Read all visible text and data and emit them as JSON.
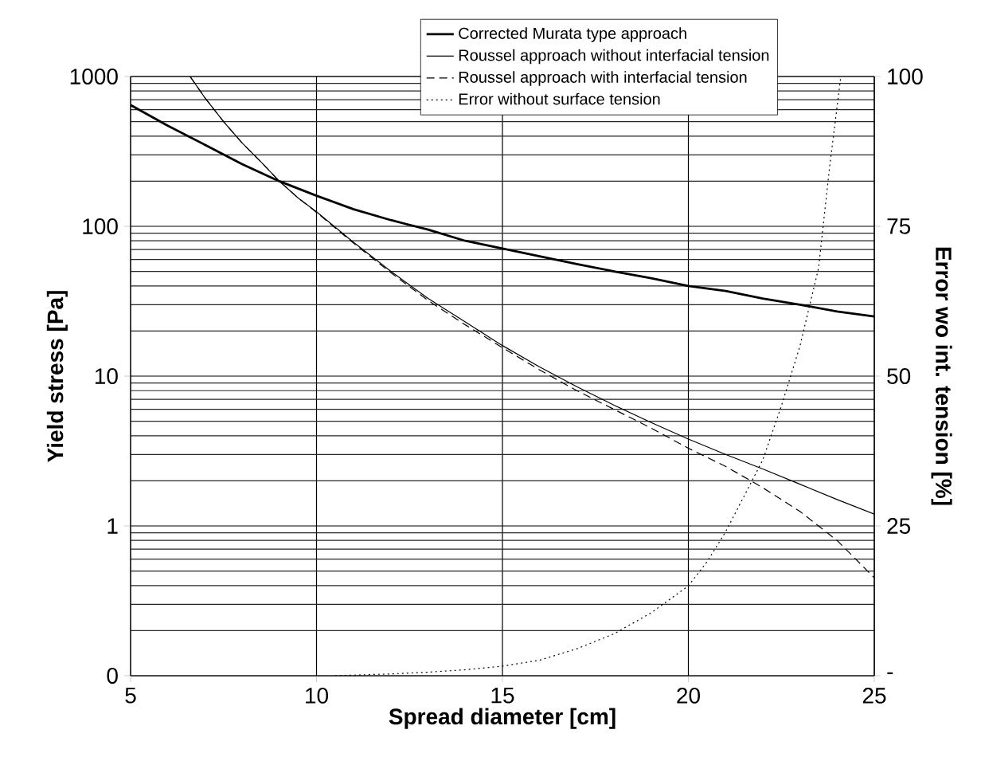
{
  "chart_data": {
    "type": "line",
    "xlabel": "Spread diameter [cm]",
    "ylabel": "Yield stress [Pa]",
    "y2label": "Error wo int. tension [%]",
    "log": "y",
    "grid": true,
    "legend": "top",
    "xlim": [
      5,
      25
    ],
    "xticks": [
      5,
      10,
      15,
      20,
      25
    ],
    "ylim": [
      0.1,
      1000
    ],
    "yticks": [
      {
        "value": 0.1,
        "label": "0"
      },
      1,
      10,
      100,
      1000
    ],
    "y2lim": [
      0,
      100
    ],
    "y2ticks": [
      {
        "value": 0,
        "label": "-"
      },
      25,
      50,
      75,
      100
    ],
    "series": [
      {
        "name": "Corrected Murata type approach",
        "color": "#000000",
        "line_style": "solid",
        "x": [
          5,
          6,
          7,
          8,
          9,
          10,
          11,
          12,
          13,
          14,
          15,
          16,
          17,
          18,
          19,
          20,
          21,
          22,
          23,
          24,
          25
        ],
        "values": [
          645,
          470,
          350,
          260,
          200,
          160,
          130,
          110,
          95,
          80,
          71,
          63,
          56,
          50,
          45,
          40,
          37,
          33,
          30,
          27,
          25
        ]
      },
      {
        "name": "Roussel approach without interfacial tension",
        "color": "#000000",
        "line_style": "solid",
        "x": [
          6.6,
          7,
          7.5,
          8,
          8.5,
          9,
          9.5,
          10,
          11,
          12,
          13,
          14,
          15,
          16,
          17,
          18,
          19,
          20,
          21,
          22,
          23,
          24,
          25
        ],
        "values": [
          1000,
          720,
          500,
          360,
          270,
          200,
          155,
          125,
          78,
          50,
          33,
          23,
          16,
          11.5,
          8.5,
          6.4,
          4.9,
          3.8,
          3,
          2.4,
          1.9,
          1.5,
          1.2
        ]
      },
      {
        "name": "Roussel approach with interfacial tension",
        "color": "#000000",
        "line_style": "dashed",
        "x": [
          6.6,
          7,
          7.5,
          8,
          8.5,
          9,
          9.5,
          10,
          11,
          12,
          13,
          14,
          15,
          16,
          17,
          18,
          19,
          20,
          21,
          22,
          23,
          24,
          25
        ],
        "values": [
          1000,
          720,
          500,
          360,
          270,
          200,
          155,
          124,
          77,
          49,
          32,
          22,
          15.5,
          11,
          8,
          6,
          4.5,
          3.3,
          2.5,
          1.8,
          1.25,
          0.8,
          0.45
        ]
      },
      {
        "name": "Error without surface tension",
        "color": "#000000",
        "line_style": "dotted",
        "axis": "y2",
        "x": [
          10.5,
          11,
          12,
          13,
          14,
          15,
          16,
          17,
          18,
          19,
          20,
          20.5,
          21,
          21.5,
          22,
          22.5,
          23,
          23.5,
          23.8,
          24.1
        ],
        "values": [
          0,
          0.1,
          0.3,
          0.6,
          1,
          1.6,
          2.6,
          4.5,
          7,
          10.5,
          15,
          19,
          24,
          30,
          36,
          45,
          55,
          68,
          85,
          100
        ]
      }
    ]
  }
}
